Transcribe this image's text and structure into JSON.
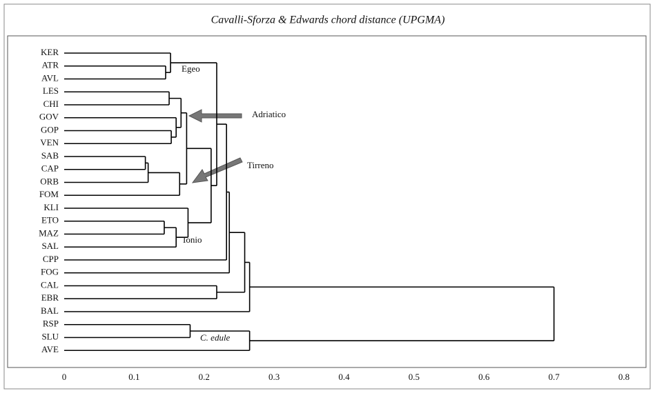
{
  "chart_data": {
    "type": "dendrogram",
    "title": "Cavalli-Sforza & Edwards chord distance (UPGMA)",
    "xlim": [
      0,
      0.8
    ],
    "xticks": [
      0,
      0.1,
      0.2,
      0.3,
      0.4,
      0.5,
      0.6,
      0.7,
      0.8
    ],
    "color": "#000000",
    "annotations": [
      "Egeo",
      "Adriatico",
      "Tirreno",
      "Ionio",
      "C. edule"
    ],
    "tree": {
      "height": 0.7,
      "children": [
        {
          "height": 0.265,
          "children": [
            {
              "height": 0.258,
              "children": [
                {
                  "height": 0.236,
                  "children": [
                    {
                      "height": 0.232,
                      "children": [
                        {
                          "height": 0.218,
                          "children": [
                            {
                              "height": 0.152,
                              "children": [
                                {
                                  "label": "KER"
                                },
                                {
                                  "height": 0.145,
                                  "children": [
                                    {
                                      "label": "ATR"
                                    },
                                    {
                                      "label": "AVL"
                                    }
                                  ]
                                }
                              ]
                            },
                            {
                              "height": 0.21,
                              "children": [
                                {
                                  "height": 0.175,
                                  "children": [
                                    {
                                      "height": 0.167,
                                      "children": [
                                        {
                                          "height": 0.15,
                                          "children": [
                                            {
                                              "label": "LES"
                                            },
                                            {
                                              "label": "CHI"
                                            }
                                          ]
                                        },
                                        {
                                          "height": 0.16,
                                          "children": [
                                            {
                                              "label": "GOV"
                                            },
                                            {
                                              "height": 0.153,
                                              "children": [
                                                {
                                                  "label": "GOP"
                                                },
                                                {
                                                  "label": "VEN"
                                                }
                                              ]
                                            }
                                          ]
                                        }
                                      ]
                                    },
                                    {
                                      "height": 0.165,
                                      "children": [
                                        {
                                          "height": 0.12,
                                          "children": [
                                            {
                                              "height": 0.116,
                                              "children": [
                                                {
                                                  "label": "SAB"
                                                },
                                                {
                                                  "label": "CAP"
                                                }
                                              ]
                                            },
                                            {
                                              "label": "ORB"
                                            }
                                          ]
                                        },
                                        {
                                          "label": "FOM"
                                        }
                                      ]
                                    }
                                  ]
                                },
                                {
                                  "height": 0.177,
                                  "children": [
                                    {
                                      "label": "KLI"
                                    },
                                    {
                                      "height": 0.16,
                                      "children": [
                                        {
                                          "height": 0.143,
                                          "children": [
                                            {
                                              "label": "ETO"
                                            },
                                            {
                                              "label": "MAZ"
                                            }
                                          ]
                                        },
                                        {
                                          "label": "SAL"
                                        }
                                      ]
                                    }
                                  ]
                                }
                              ]
                            }
                          ]
                        },
                        {
                          "label": "CPP"
                        }
                      ]
                    },
                    {
                      "label": "FOG"
                    }
                  ]
                },
                {
                  "height": 0.218,
                  "children": [
                    {
                      "label": "CAL"
                    },
                    {
                      "label": "EBR"
                    }
                  ]
                }
              ]
            },
            {
              "label": "BAL"
            }
          ]
        },
        {
          "height": 0.265,
          "children": [
            {
              "height": 0.18,
              "children": [
                {
                  "label": "RSP"
                },
                {
                  "label": "SLU"
                }
              ]
            },
            {
              "label": "AVE"
            }
          ]
        }
      ]
    }
  }
}
